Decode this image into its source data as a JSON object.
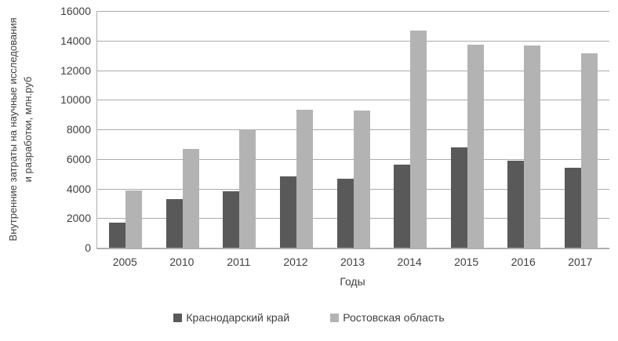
{
  "chart_data": {
    "type": "bar",
    "title": "",
    "categories": [
      "2005",
      "2010",
      "2011",
      "2012",
      "2013",
      "2014",
      "2015",
      "2016",
      "2017"
    ],
    "series": [
      {
        "name": "Краснодарский край",
        "color": "#595959",
        "values": [
          1700,
          3300,
          3800,
          4800,
          4650,
          5600,
          6800,
          5900,
          5400
        ]
      },
      {
        "name": "Ростовская область",
        "color": "#b3b3b3",
        "values": [
          3850,
          6650,
          8000,
          9300,
          9250,
          14700,
          13700,
          13650,
          13150
        ]
      }
    ],
    "xlabel": "Годы",
    "ylabel": "Внутренние затраты на научные исследования и разработки, млн.руб",
    "ylabel_line1": "Внутренние затраты на научные исследования",
    "ylabel_line2": "и разработки, млн.руб",
    "ylim": [
      0,
      16000
    ],
    "ytick_step": 2000,
    "yticks": [
      0,
      2000,
      4000,
      6000,
      8000,
      10000,
      12000,
      14000,
      16000
    ],
    "grid": "horizontal",
    "legend_position": "bottom"
  },
  "colors": {
    "bar_dark": "#595959",
    "bar_light": "#b3b3b3",
    "gridline": "#ababab",
    "axis": "#b0b0b0",
    "text": "#3f3f3f",
    "background": "#ffffff"
  }
}
